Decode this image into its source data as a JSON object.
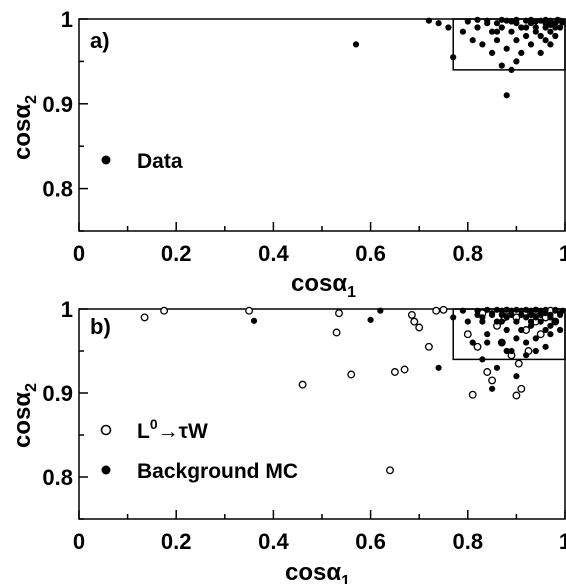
{
  "chart_data": [
    {
      "type": "scatter",
      "panel_label": "a)",
      "xlabel": "cosα",
      "xlabel_sub": "1",
      "ylabel": "cosα",
      "ylabel_sub": "2",
      "xlim": [
        0,
        1
      ],
      "ylim": [
        0.75,
        1
      ],
      "xticks": [
        0,
        0.2,
        0.4,
        0.6,
        0.8,
        1
      ],
      "xtick_labels": [
        "0",
        "0.2",
        "0.4",
        "0.6",
        "0.8",
        "1"
      ],
      "yticks": [
        0.8,
        0.9,
        1
      ],
      "ytick_labels": [
        "0.8",
        "0.9",
        "1"
      ],
      "cut_box": {
        "x": [
          0.77,
          1
        ],
        "y": [
          0.94,
          1
        ]
      },
      "legend_position": "center-left",
      "series": [
        {
          "name": "Data",
          "marker": "filled",
          "points": [
            [
              0.57,
              0.97
            ],
            [
              0.72,
              0.998
            ],
            [
              0.74,
              0.995
            ],
            [
              0.76,
              0.99
            ],
            [
              0.77,
              0.955
            ],
            [
              0.79,
              0.985
            ],
            [
              0.8,
              0.997
            ],
            [
              0.81,
              0.975
            ],
            [
              0.82,
              0.99
            ],
            [
              0.83,
              0.97
            ],
            [
              0.84,
              0.998
            ],
            [
              0.85,
              0.96
            ],
            [
              0.85,
              0.985
            ],
            [
              0.86,
              0.995
            ],
            [
              0.86,
              0.975
            ],
            [
              0.87,
              0.945
            ],
            [
              0.87,
              0.99
            ],
            [
              0.88,
              0.91
            ],
            [
              0.88,
              0.998
            ],
            [
              0.88,
              0.965
            ],
            [
              0.89,
              0.94
            ],
            [
              0.89,
              0.985
            ],
            [
              0.9,
              0.95
            ],
            [
              0.9,
              0.995
            ],
            [
              0.9,
              0.975
            ],
            [
              0.91,
              0.99
            ],
            [
              0.91,
              0.96
            ],
            [
              0.92,
              0.998
            ],
            [
              0.92,
              0.98
            ],
            [
              0.93,
              0.97
            ],
            [
              0.93,
              0.995
            ],
            [
              0.94,
              0.985
            ],
            [
              0.94,
              0.99
            ],
            [
              0.95,
              0.998
            ],
            [
              0.95,
              0.96
            ],
            [
              0.95,
              0.98
            ],
            [
              0.96,
              0.995
            ],
            [
              0.96,
              0.975
            ],
            [
              0.96,
              0.99
            ],
            [
              0.97,
              0.998
            ],
            [
              0.97,
              0.985
            ],
            [
              0.97,
              0.97
            ],
            [
              0.98,
              0.995
            ],
            [
              0.98,
              0.98
            ],
            [
              0.98,
              0.99
            ],
            [
              0.99,
              0.998
            ],
            [
              0.99,
              0.99
            ],
            [
              0.995,
              0.996
            ],
            [
              0.84,
              0.995
            ],
            [
              0.87,
              0.999
            ],
            [
              0.9,
              0.999
            ],
            [
              0.93,
              0.999
            ],
            [
              0.96,
              0.999
            ],
            [
              0.985,
              0.999
            ],
            [
              0.82,
              0.999
            ],
            [
              0.89,
              0.997
            ],
            [
              0.94,
              0.997
            ],
            [
              0.97,
              0.993
            ],
            [
              0.92,
              0.99
            ],
            [
              0.86,
              0.985
            ]
          ]
        }
      ]
    },
    {
      "type": "scatter",
      "panel_label": "b)",
      "xlabel": "cosα",
      "xlabel_sub": "1",
      "ylabel": "cosα",
      "ylabel_sub": "2",
      "xlim": [
        0,
        1
      ],
      "ylim": [
        0.75,
        1
      ],
      "xticks": [
        0,
        0.2,
        0.4,
        0.6,
        0.8,
        1
      ],
      "xtick_labels": [
        "0",
        "0.2",
        "0.4",
        "0.6",
        "0.8",
        "1"
      ],
      "yticks": [
        0.8,
        0.9,
        1
      ],
      "ytick_labels": [
        "0.8",
        "0.9",
        "1"
      ],
      "cut_box": {
        "x": [
          0.77,
          1
        ],
        "y": [
          0.94,
          1
        ]
      },
      "legend_position": "bottom-left",
      "series": [
        {
          "name": "L",
          "name_sup": "0",
          "name_rest": "→τW",
          "marker": "open",
          "points": [
            [
              0.135,
              0.99
            ],
            [
              0.175,
              0.998
            ],
            [
              0.35,
              0.998
            ],
            [
              0.46,
              0.91
            ],
            [
              0.53,
              0.972
            ],
            [
              0.535,
              0.995
            ],
            [
              0.56,
              0.922
            ],
            [
              0.64,
              0.808
            ],
            [
              0.65,
              0.925
            ],
            [
              0.67,
              0.928
            ],
            [
              0.685,
              0.993
            ],
            [
              0.69,
              0.985
            ],
            [
              0.7,
              0.978
            ],
            [
              0.72,
              0.955
            ],
            [
              0.735,
              0.998
            ],
            [
              0.75,
              0.999
            ],
            [
              0.8,
              0.97
            ],
            [
              0.81,
              0.898
            ],
            [
              0.82,
              0.955
            ],
            [
              0.84,
              0.925
            ],
            [
              0.85,
              0.915
            ],
            [
              0.86,
              0.98
            ],
            [
              0.87,
              0.96
            ],
            [
              0.875,
              0.99
            ],
            [
              0.89,
              0.945
            ],
            [
              0.9,
              0.897
            ],
            [
              0.905,
              0.935
            ],
            [
              0.91,
              0.905
            ],
            [
              0.92,
              0.975
            ],
            [
              0.925,
              0.95
            ],
            [
              0.93,
              0.995
            ],
            [
              0.94,
              0.985
            ],
            [
              0.95,
              0.97
            ],
            [
              0.96,
              0.99
            ],
            [
              0.97,
              0.998
            ],
            [
              0.98,
              0.985
            ],
            [
              0.83,
              0.995
            ],
            [
              0.88,
              0.998
            ],
            [
              0.9,
              0.99
            ],
            [
              0.94,
              0.998
            ]
          ]
        },
        {
          "name": "Background MC",
          "marker": "filled",
          "points": [
            [
              0.36,
              0.986
            ],
            [
              0.6,
              0.987
            ],
            [
              0.62,
              0.998
            ],
            [
              0.74,
              0.93
            ],
            [
              0.77,
              0.99
            ],
            [
              0.79,
              0.998
            ],
            [
              0.8,
              0.985
            ],
            [
              0.81,
              0.96
            ],
            [
              0.82,
              0.998
            ],
            [
              0.83,
              0.99
            ],
            [
              0.83,
              0.94
            ],
            [
              0.84,
              0.97
            ],
            [
              0.85,
              0.995
            ],
            [
              0.85,
              0.905
            ],
            [
              0.86,
              0.985
            ],
            [
              0.86,
              0.93
            ],
            [
              0.87,
              0.998
            ],
            [
              0.87,
              0.96
            ],
            [
              0.88,
              0.99
            ],
            [
              0.88,
              0.975
            ],
            [
              0.89,
              0.998
            ],
            [
              0.89,
              0.95
            ],
            [
              0.9,
              0.985
            ],
            [
              0.9,
              0.965
            ],
            [
              0.91,
              0.998
            ],
            [
              0.91,
              0.975
            ],
            [
              0.92,
              0.99
            ],
            [
              0.92,
              0.945
            ],
            [
              0.93,
              0.998
            ],
            [
              0.93,
              0.98
            ],
            [
              0.94,
              0.99
            ],
            [
              0.94,
              0.965
            ],
            [
              0.95,
              0.998
            ],
            [
              0.95,
              0.985
            ],
            [
              0.96,
              0.975
            ],
            [
              0.96,
              0.995
            ],
            [
              0.97,
              0.99
            ],
            [
              0.97,
              0.98
            ],
            [
              0.98,
              0.998
            ],
            [
              0.98,
              0.985
            ],
            [
              0.99,
              0.995
            ],
            [
              0.99,
              0.975
            ],
            [
              0.995,
              0.998
            ],
            [
              0.84,
              0.999
            ],
            [
              0.86,
              0.999
            ],
            [
              0.88,
              0.999
            ],
            [
              0.9,
              0.999
            ],
            [
              0.92,
              0.999
            ],
            [
              0.94,
              0.999
            ],
            [
              0.96,
              0.999
            ],
            [
              0.98,
              0.999
            ],
            [
              0.82,
              0.993
            ],
            [
              0.85,
              0.993
            ],
            [
              0.87,
              0.993
            ],
            [
              0.89,
              0.993
            ],
            [
              0.91,
              0.993
            ],
            [
              0.93,
              0.993
            ],
            [
              0.95,
              0.993
            ],
            [
              0.97,
              0.993
            ],
            [
              0.99,
              0.993
            ],
            [
              0.83,
              0.985
            ],
            [
              0.87,
              0.985
            ],
            [
              0.93,
              0.985
            ],
            [
              0.97,
              0.97
            ],
            [
              0.92,
              0.96
            ],
            [
              0.96,
              0.955
            ],
            [
              0.9,
              0.92
            ],
            [
              0.88,
              0.95
            ],
            [
              0.84,
              0.96
            ],
            [
              0.94,
              0.95
            ]
          ]
        }
      ]
    }
  ]
}
